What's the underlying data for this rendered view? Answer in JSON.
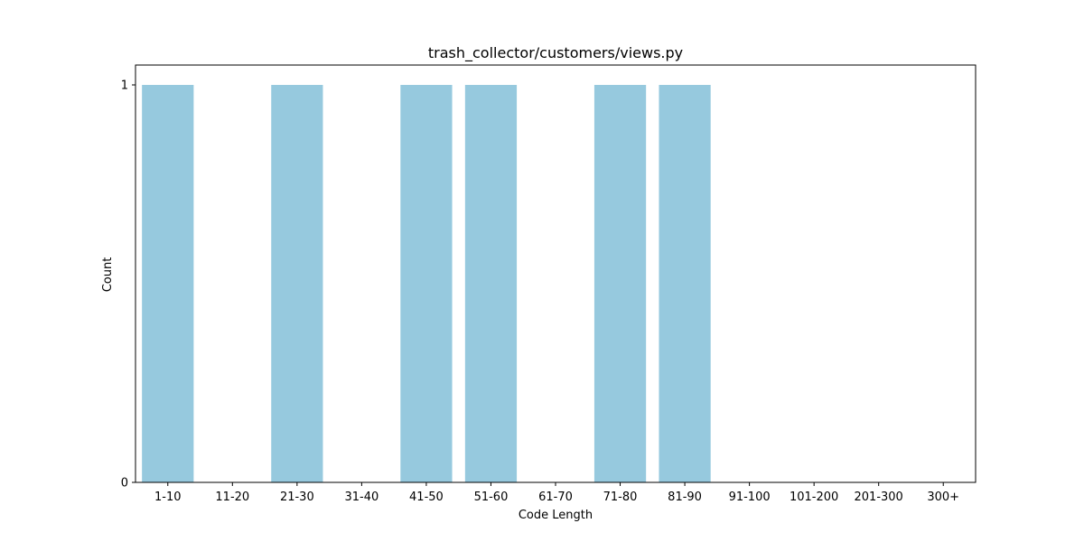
{
  "chart_data": {
    "type": "bar",
    "title": "trash_collector/customers/views.py",
    "xlabel": "Code Length",
    "ylabel": "Count",
    "categories": [
      "1-10",
      "11-20",
      "21-30",
      "31-40",
      "41-50",
      "51-60",
      "61-70",
      "71-80",
      "81-90",
      "91-100",
      "101-200",
      "201-300",
      "300+"
    ],
    "values": [
      1,
      0,
      1,
      0,
      1,
      1,
      0,
      1,
      1,
      0,
      0,
      0,
      0
    ],
    "ylim": [
      0,
      1.05
    ],
    "yticks": [
      0,
      1
    ],
    "grid": false,
    "bar_color": "#96c9de"
  }
}
